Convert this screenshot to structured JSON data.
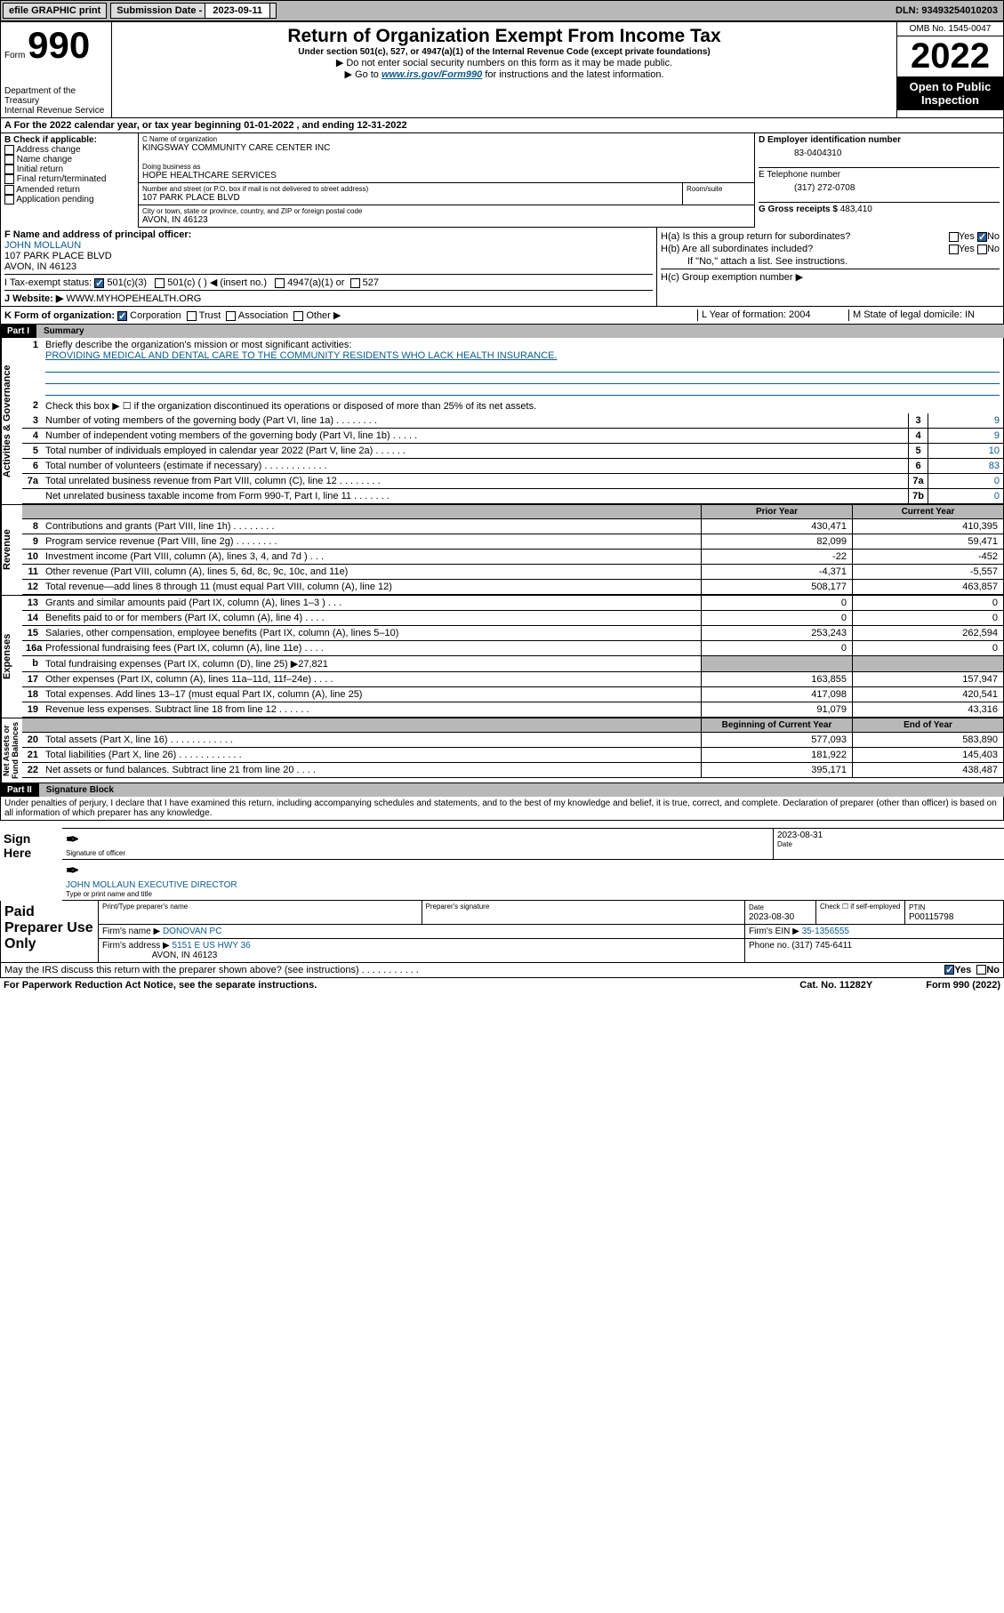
{
  "topbar": {
    "efile": "efile GRAPHIC print",
    "sub_label": "Submission Date - ",
    "sub_date": "2023-09-11",
    "dln": "DLN: 93493254010203"
  },
  "header": {
    "form_word": "Form",
    "form_num": "990",
    "dept": "Department of the Treasury\nInternal Revenue Service",
    "title": "Return of Organization Exempt From Income Tax",
    "subtitle": "Under section 501(c), 527, or 4947(a)(1) of the Internal Revenue Code (except private foundations)",
    "note1": "▶ Do not enter social security numbers on this form as it may be made public.",
    "note2_pre": "▶ Go to ",
    "note2_link": "www.irs.gov/Form990",
    "note2_post": " for instructions and the latest information.",
    "omb": "OMB No. 1545-0047",
    "year": "2022",
    "open": "Open to Public Inspection"
  },
  "rowA": "A For the 2022 calendar year, or tax year beginning 01-01-2022   , and ending 12-31-2022",
  "colB": {
    "hdr": "B Check if applicable:",
    "items": [
      "Address change",
      "Name change",
      "Initial return",
      "Final return/terminated",
      "Amended return",
      "Application pending"
    ]
  },
  "colC": {
    "name_lbl": "C Name of organization",
    "name": "KINGSWAY COMMUNITY CARE CENTER INC",
    "dba_lbl": "Doing business as",
    "dba": "HOPE HEALTHCARE SERVICES",
    "street_lbl": "Number and street (or P.O. box if mail is not delivered to street address)",
    "street": "107 PARK PLACE BLVD",
    "room_lbl": "Room/suite",
    "city_lbl": "City or town, state or province, country, and ZIP or foreign postal code",
    "city": "AVON, IN  46123"
  },
  "colD": {
    "ein_lbl": "D Employer identification number",
    "ein": "83-0404310",
    "tel_lbl": "E Telephone number",
    "tel": "(317) 272-0708",
    "gross_lbl": "G Gross receipts $ ",
    "gross": "483,410"
  },
  "rowF": {
    "f_lbl": "F Name and address of principal officer:",
    "f_name": "JOHN MOLLAUN",
    "f_addr1": "107 PARK PLACE BLVD",
    "f_addr2": "AVON, IN  46123",
    "i_lbl": "I   Tax-exempt status:",
    "i_501c3": "501(c)(3)",
    "i_501c": "501(c) (   ) ◀ (insert no.)",
    "i_4947": "4947(a)(1) or",
    "i_527": "527",
    "j_lbl": "J   Website: ▶",
    "j_site": "WWW.MYHOPEHEALTH.ORG"
  },
  "rowH": {
    "ha": "H(a)  Is this a group return for subordinates?",
    "hb": "H(b)  Are all subordinates included?",
    "hb_note": "If \"No,\" attach a list. See instructions.",
    "hc": "H(c)  Group exemption number ▶",
    "yes": "Yes",
    "no": "No"
  },
  "rowK": {
    "k": "K Form of organization:",
    "corp": "Corporation",
    "trust": "Trust",
    "assoc": "Association",
    "other": "Other ▶",
    "l": "L Year of formation: 2004",
    "m": "M State of legal domicile: IN"
  },
  "parts": {
    "p1": "Part I",
    "p1t": "Summary",
    "p2": "Part II",
    "p2t": "Signature Block"
  },
  "summary": {
    "l1": "Briefly describe the organization's mission or most significant activities:",
    "l1a": "PROVIDING MEDICAL AND DENTAL CARE TO THE COMMUNITY RESIDENTS WHO LACK HEALTH INSURANCE.",
    "l2": "Check this box ▶ ☐  if the organization discontinued its operations or disposed of more than 25% of its net assets.",
    "rows_gov": [
      {
        "n": "3",
        "t": "Number of voting members of the governing body (Part VI, line 1a)   .    .    .    .    .    .    .    .",
        "b": "3",
        "v": "9"
      },
      {
        "n": "4",
        "t": "Number of independent voting members of the governing body (Part VI, line 1b)   .    .    .    .    .",
        "b": "4",
        "v": "9"
      },
      {
        "n": "5",
        "t": "Total number of individuals employed in calendar year 2022 (Part V, line 2a)   .    .    .    .    .    .",
        "b": "5",
        "v": "10"
      },
      {
        "n": "6",
        "t": "Total number of volunteers (estimate if necessary)   .    .    .    .    .    .    .    .    .    .    .    .",
        "b": "6",
        "v": "83"
      },
      {
        "n": "7a",
        "t": "Total unrelated business revenue from Part VIII, column (C), line 12   .    .    .    .    .    .    .    .",
        "b": "7a",
        "v": "0"
      },
      {
        "n": "",
        "t": "Net unrelated business taxable income from Form 990-T, Part I, line 11   .    .    .    .    .    .    .",
        "b": "7b",
        "v": "0"
      }
    ],
    "hdr_prior": "Prior Year",
    "hdr_curr": "Current Year",
    "hdr_begin": "Beginning of Current Year",
    "hdr_end": "End of Year",
    "rev": [
      {
        "n": "8",
        "t": "Contributions and grants (Part VIII, line 1h)   .    .    .    .    .    .    .    .",
        "p": "430,471",
        "c": "410,395"
      },
      {
        "n": "9",
        "t": "Program service revenue (Part VIII, line 2g)   .    .    .    .    .    .    .    .",
        "p": "82,099",
        "c": "59,471"
      },
      {
        "n": "10",
        "t": "Investment income (Part VIII, column (A), lines 3, 4, and 7d )   .    .    .",
        "p": "-22",
        "c": "-452"
      },
      {
        "n": "11",
        "t": "Other revenue (Part VIII, column (A), lines 5, 6d, 8c, 9c, 10c, and 11e)",
        "p": "-4,371",
        "c": "-5,557"
      },
      {
        "n": "12",
        "t": "Total revenue—add lines 8 through 11 (must equal Part VIII, column (A), line 12)",
        "p": "508,177",
        "c": "463,857"
      }
    ],
    "exp": [
      {
        "n": "13",
        "t": "Grants and similar amounts paid (Part IX, column (A), lines 1–3 )   .    .    .",
        "p": "0",
        "c": "0"
      },
      {
        "n": "14",
        "t": "Benefits paid to or for members (Part IX, column (A), line 4)   .    .    .    .",
        "p": "0",
        "c": "0"
      },
      {
        "n": "15",
        "t": "Salaries, other compensation, employee benefits (Part IX, column (A), lines 5–10)",
        "p": "253,243",
        "c": "262,594"
      },
      {
        "n": "16a",
        "t": "Professional fundraising fees (Part IX, column (A), line 11e)   .    .    .    .",
        "p": "0",
        "c": "0"
      },
      {
        "n": "b",
        "t": "Total fundraising expenses (Part IX, column (D), line 25) ▶27,821",
        "p": "",
        "c": ""
      },
      {
        "n": "17",
        "t": "Other expenses (Part IX, column (A), lines 11a–11d, 11f–24e)   .    .    .    .",
        "p": "163,855",
        "c": "157,947"
      },
      {
        "n": "18",
        "t": "Total expenses. Add lines 13–17 (must equal Part IX, column (A), line 25)",
        "p": "417,098",
        "c": "420,541"
      },
      {
        "n": "19",
        "t": "Revenue less expenses. Subtract line 18 from line 12   .    .    .    .    .    .",
        "p": "91,079",
        "c": "43,316"
      }
    ],
    "net": [
      {
        "n": "20",
        "t": "Total assets (Part X, line 16)   .    .    .    .    .    .    .    .    .    .    .    .",
        "p": "577,093",
        "c": "583,890"
      },
      {
        "n": "21",
        "t": "Total liabilities (Part X, line 26)   .    .    .    .    .    .    .    .    .    .    .    .",
        "p": "181,922",
        "c": "145,403"
      },
      {
        "n": "22",
        "t": "Net assets or fund balances. Subtract line 21 from line 20   .    .    .    .",
        "p": "395,171",
        "c": "438,487"
      }
    ]
  },
  "vtabs": {
    "gov": "Activities & Governance",
    "rev": "Revenue",
    "exp": "Expenses",
    "net": "Net Assets or\nFund Balances"
  },
  "sig": {
    "penalty": "Under penalties of perjury, I declare that I have examined this return, including accompanying schedules and statements, and to the best of my knowledge and belief, it is true, correct, and complete. Declaration of preparer (other than officer) is based on all information of which preparer has any knowledge.",
    "sign_here": "Sign Here",
    "sig_off": "Signature of officer",
    "date_lbl": "Date",
    "sig_date": "2023-08-31",
    "officer": "JOHN MOLLAUN  EXECUTIVE DIRECTOR",
    "officer_lbl": "Type or print name and title"
  },
  "prep": {
    "title": "Paid Preparer Use Only",
    "h1": "Print/Type preparer's name",
    "h2": "Preparer's signature",
    "h3": "Date",
    "h4": "Check ☐ if self-employed",
    "h5": "PTIN",
    "date": "2023-08-30",
    "ptin": "P00115798",
    "firm_lbl": "Firm's name    ▶",
    "firm": "DONOVAN PC",
    "ein_lbl": "Firm's EIN ▶",
    "ein": "35-1356555",
    "addr_lbl": "Firm's address ▶",
    "addr1": "5151 E US HWY 36",
    "addr2": "AVON, IN  46123",
    "phone_lbl": "Phone no.",
    "phone": "(317) 745-6411"
  },
  "may": {
    "q": "May the IRS discuss this return with the preparer shown above? (see instructions)   .    .    .    .    .    .    .    .    .    .    .",
    "yes": "Yes",
    "no": "No"
  },
  "footer": {
    "l": "For Paperwork Reduction Act Notice, see the separate instructions.",
    "m": "Cat. No. 11282Y",
    "r": "Form 990 (2022)"
  }
}
